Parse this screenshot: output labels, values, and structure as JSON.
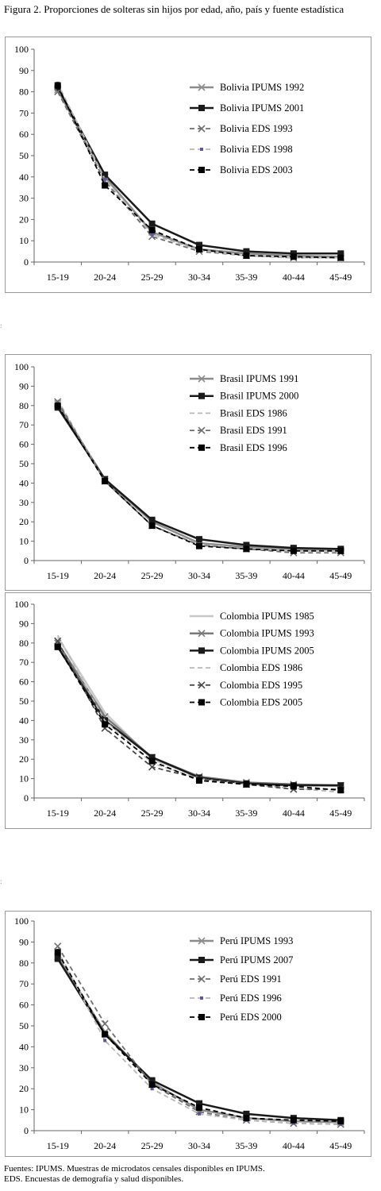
{
  "figure": {
    "title": "Figura 2. Proporciones de solteras sin hijos por edad, año, país y fuente estadística",
    "footnote_lines": [
      "Fuentes: IPUMS. Muestras de microdatos censales disponibles en IPUMS.",
      "EDS. Encuestas de demografía y salud disponibles."
    ]
  },
  "chart_data": [
    {
      "type": "line",
      "categories": [
        "15-19",
        "20-24",
        "25-29",
        "30-34",
        "35-39",
        "40-44",
        "45-49"
      ],
      "ylim": [
        0,
        100
      ],
      "yticks": [
        0,
        10,
        20,
        30,
        40,
        50,
        60,
        70,
        80,
        90,
        100
      ],
      "grid": false,
      "legend_position": "top-right",
      "series": [
        {
          "name": "Bolivia IPUMS 1992",
          "values": [
            81,
            40,
            14,
            6,
            4,
            3,
            2.5
          ],
          "color": "#8c8c8c",
          "dash": "solid",
          "marker": "x",
          "width": 2.5
        },
        {
          "name": "Bolivia IPUMS 2001",
          "values": [
            82,
            41,
            18,
            8,
            5,
            4,
            4
          ],
          "color": "#1a1a1a",
          "dash": "solid",
          "marker": "square",
          "width": 2.5
        },
        {
          "name": "Bolivia EDS 1993",
          "values": [
            80,
            38,
            12,
            5,
            3,
            2,
            2
          ],
          "color": "#6e6e6e",
          "dash": "dashed",
          "marker": "x",
          "width": 1.8
        },
        {
          "name": "Bolivia EDS 1998",
          "values": [
            84,
            39,
            13,
            5.5,
            3,
            2,
            2
          ],
          "color": "#b8b8b8",
          "dash": "dashed",
          "marker": "dot",
          "width": 1.8
        },
        {
          "name": "Bolivia EDS 2003",
          "values": [
            83,
            36,
            15,
            6,
            3,
            2.5,
            2
          ],
          "color": "#000000",
          "dash": "dashed",
          "marker": "square",
          "width": 1.8
        }
      ]
    },
    {
      "type": "line",
      "categories": [
        "15-19",
        "20-24",
        "25-29",
        "30-34",
        "35-39",
        "40-44",
        "45-49"
      ],
      "ylim": [
        0,
        100
      ],
      "yticks": [
        0,
        10,
        20,
        30,
        40,
        50,
        60,
        70,
        80,
        90,
        100
      ],
      "grid": false,
      "legend_position": "top-right",
      "series": [
        {
          "name": "Brasil IPUMS 1991",
          "values": [
            81,
            42,
            20,
            9,
            7,
            6,
            5
          ],
          "color": "#8c8c8c",
          "dash": "solid",
          "marker": "x",
          "width": 2.5
        },
        {
          "name": "Brasil IPUMS 2000",
          "values": [
            79,
            42,
            21,
            11,
            8,
            6.5,
            6
          ],
          "color": "#1a1a1a",
          "dash": "solid",
          "marker": "square",
          "width": 2.5
        },
        {
          "name": "Brasil EDS 1986",
          "values": [
            83,
            41,
            18,
            8,
            6,
            5,
            5
          ],
          "color": "#b8b8b8",
          "dash": "dashed",
          "marker": "none",
          "width": 1.8
        },
        {
          "name": "Brasil EDS 1991",
          "values": [
            82,
            41,
            18,
            8,
            6,
            4,
            4
          ],
          "color": "#6e6e6e",
          "dash": "dashed",
          "marker": "x",
          "width": 1.8
        },
        {
          "name": "Brasil EDS 1996",
          "values": [
            80,
            41,
            18,
            7.5,
            6,
            5,
            5
          ],
          "color": "#000000",
          "dash": "dashed",
          "marker": "square",
          "width": 1.8
        }
      ]
    },
    {
      "type": "line",
      "categories": [
        "15-19",
        "20-24",
        "25-29",
        "30-34",
        "35-39",
        "40-44",
        "45-49"
      ],
      "ylim": [
        0,
        100
      ],
      "yticks": [
        0,
        10,
        20,
        30,
        40,
        50,
        60,
        70,
        80,
        90,
        100
      ],
      "grid": false,
      "legend_position": "top-right",
      "series": [
        {
          "name": "Colombia IPUMS 1985",
          "values": [
            83,
            44,
            20,
            11,
            8,
            7,
            6
          ],
          "color": "#c8c8c8",
          "dash": "solid",
          "marker": "none",
          "width": 2.5
        },
        {
          "name": "Colombia IPUMS 1993",
          "values": [
            80,
            42,
            21,
            11,
            8,
            7,
            6.5
          ],
          "color": "#7a7a7a",
          "dash": "solid",
          "marker": "x",
          "width": 2.5
        },
        {
          "name": "Colombia IPUMS 2005",
          "values": [
            78,
            40,
            21,
            10.5,
            7.5,
            6.5,
            6.5
          ],
          "color": "#1a1a1a",
          "dash": "solid",
          "marker": "square",
          "width": 2.5
        },
        {
          "name": "Colombia EDS 1986",
          "values": [
            84,
            40,
            18,
            10,
            7,
            5,
            3
          ],
          "color": "#b8b8b8",
          "dash": "dashed",
          "marker": "none",
          "width": 1.8
        },
        {
          "name": "Colombia EDS 1995",
          "values": [
            81,
            36,
            16,
            10,
            7,
            4.5,
            4.5
          ],
          "color": "#4a4a4a",
          "dash": "dashed",
          "marker": "x",
          "width": 1.8
        },
        {
          "name": "Colombia EDS 2005",
          "values": [
            78,
            38,
            19,
            9,
            7,
            6,
            4
          ],
          "color": "#000000",
          "dash": "dashed",
          "marker": "square",
          "width": 1.8
        }
      ]
    },
    {
      "type": "line",
      "categories": [
        "15-19",
        "20-24",
        "25-29",
        "30-34",
        "35-39",
        "40-44",
        "45-49"
      ],
      "ylim": [
        0,
        100
      ],
      "yticks": [
        0,
        10,
        20,
        30,
        40,
        50,
        60,
        70,
        80,
        90,
        100
      ],
      "grid": false,
      "legend_position": "top-right",
      "series": [
        {
          "name": "Perú IPUMS 1993",
          "values": [
            83,
            47,
            23,
            10,
            6,
            4.5,
            4
          ],
          "color": "#8c8c8c",
          "dash": "solid",
          "marker": "x",
          "width": 2.5
        },
        {
          "name": "Perú IPUMS 2007",
          "values": [
            82,
            46,
            24,
            13,
            8,
            6,
            5
          ],
          "color": "#1a1a1a",
          "dash": "solid",
          "marker": "square",
          "width": 2.5
        },
        {
          "name": "Perú EDS 1991",
          "values": [
            88,
            51,
            22,
            9,
            5,
            3.5,
            3
          ],
          "color": "#6e6e6e",
          "dash": "dashed",
          "marker": "x",
          "width": 1.8
        },
        {
          "name": "Perú EDS 1996",
          "values": [
            86,
            43,
            20,
            8,
            5,
            3.5,
            3
          ],
          "color": "#b8b8b8",
          "dash": "dashed",
          "marker": "dot",
          "width": 1.8
        },
        {
          "name": "Perú EDS 2000",
          "values": [
            85,
            46,
            22,
            11,
            6,
            5,
            4.5
          ],
          "color": "#000000",
          "dash": "dashed",
          "marker": "square",
          "width": 1.8
        }
      ]
    }
  ]
}
